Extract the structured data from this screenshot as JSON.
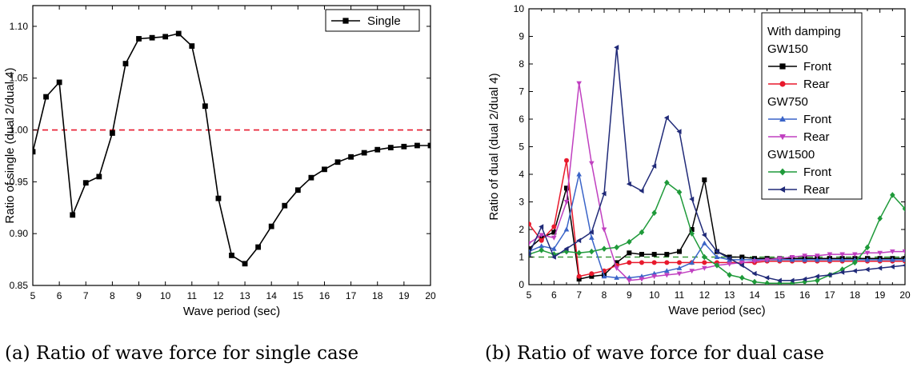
{
  "captions": {
    "a": "(a) Ratio of wave force for single case",
    "b": "(b) Ratio of wave force for dual case"
  },
  "colors": {
    "black": "#000000",
    "red": "#e8192c",
    "blue": "#3a64c8",
    "magenta": "#c040c0",
    "green": "#1f9a3a",
    "navy": "#202a78",
    "ref_red": "#e8192c",
    "ref_green": "#3c9a3c"
  },
  "chart_data": [
    {
      "type": "line",
      "xlabel": "Wave period (sec)",
      "ylabel": "Ratio of single (dual 2/dual 4)",
      "xlim": [
        5,
        20
      ],
      "ylim": [
        0.85,
        1.12
      ],
      "xticks": [
        "5",
        "6",
        "7",
        "8",
        "9",
        "10",
        "11",
        "12",
        "13",
        "14",
        "15",
        "16",
        "17",
        "18",
        "19",
        "20"
      ],
      "yticks": [
        "0.85",
        "0.90",
        "0.95",
        "1.00",
        "1.05",
        "1.10"
      ],
      "reference_line": 1.0,
      "legend_position": "top-right",
      "series": [
        {
          "name": "Single",
          "marker": "square",
          "color": "#000000",
          "x": [
            5,
            5.5,
            6,
            6.5,
            7,
            7.5,
            8,
            8.5,
            9,
            9.5,
            10,
            10.5,
            11,
            11.5,
            12,
            12.5,
            13,
            13.5,
            14,
            14.5,
            15,
            15.5,
            16,
            16.5,
            17,
            17.5,
            18,
            18.5,
            19,
            19.5,
            20
          ],
          "y": [
            0.979,
            1.032,
            1.046,
            0.918,
            0.949,
            0.955,
            0.997,
            1.064,
            1.088,
            1.089,
            1.09,
            1.093,
            1.081,
            1.023,
            0.934,
            0.879,
            0.871,
            0.887,
            0.907,
            0.927,
            0.942,
            0.954,
            0.962,
            0.969,
            0.974,
            0.978,
            0.981,
            0.983,
            0.984,
            0.985,
            0.985
          ]
        }
      ]
    },
    {
      "type": "line",
      "xlabel": "Wave period (sec)",
      "ylabel": "Ratio of dual (dual 2/dual 4)",
      "xlim": [
        5,
        20
      ],
      "ylim": [
        0,
        10
      ],
      "xticks": [
        "5",
        "5.5",
        "6",
        "6.5",
        "7",
        "7.5",
        "8",
        "8.5",
        "9",
        "9.5",
        "10",
        "10.5",
        "11",
        "11.5",
        "12",
        "12.5",
        "13",
        "13.5",
        "14",
        "14.5",
        "15",
        "15.5",
        "16",
        "16.5",
        "17",
        "17.5",
        "18",
        "18.5",
        "19",
        "19.5",
        "20"
      ],
      "xtick_labels": [
        "5",
        "",
        "6",
        "",
        "7",
        "",
        "8",
        "",
        "9",
        "",
        "10",
        "",
        "11",
        "",
        "12",
        "",
        "13",
        "",
        "14",
        "",
        "15",
        "",
        "16",
        "",
        "17",
        "",
        "18",
        "",
        "19",
        "",
        "20"
      ],
      "yticks": [
        "0",
        "1",
        "2",
        "3",
        "4",
        "5",
        "6",
        "7",
        "8",
        "9",
        "10"
      ],
      "reference_line": 1.0,
      "legend_position": "top-right",
      "legend_groups": [
        "With damping GW150",
        "GW750",
        "GW1500"
      ],
      "series": [
        {
          "name": "Front",
          "group": "GW150",
          "marker": "square",
          "color": "#000000",
          "x": [
            5,
            5.5,
            6,
            6.5,
            7,
            7.5,
            8,
            8.5,
            9,
            9.5,
            10,
            10.5,
            11,
            11.5,
            12,
            12.5,
            13,
            13.5,
            14,
            14.5,
            15,
            15.5,
            16,
            16.5,
            17,
            17.5,
            18,
            18.5,
            19,
            19.5,
            20
          ],
          "y": [
            1.3,
            1.7,
            1.9,
            3.5,
            0.2,
            0.3,
            0.35,
            0.8,
            1.15,
            1.1,
            1.1,
            1.1,
            1.2,
            2.0,
            3.8,
            1.2,
            1.0,
            1.0,
            0.95,
            0.95,
            0.95,
            0.95,
            0.95,
            0.95,
            0.95,
            0.95,
            0.95,
            0.95,
            0.95,
            0.95,
            0.95
          ]
        },
        {
          "name": "Rear",
          "group": "GW150",
          "marker": "circle",
          "color": "#e8192c",
          "x": [
            5,
            5.5,
            6,
            6.5,
            7,
            7.5,
            8,
            8.5,
            9,
            9.5,
            10,
            10.5,
            11,
            11.5,
            12,
            12.5,
            13,
            13.5,
            14,
            14.5,
            15,
            15.5,
            16,
            16.5,
            17,
            17.5,
            18,
            18.5,
            19,
            19.5,
            20
          ],
          "y": [
            2.2,
            1.6,
            2.1,
            4.5,
            0.3,
            0.4,
            0.5,
            0.7,
            0.8,
            0.8,
            0.8,
            0.8,
            0.8,
            0.8,
            0.8,
            0.8,
            0.8,
            0.8,
            0.8,
            0.85,
            0.85,
            0.85,
            0.85,
            0.85,
            0.85,
            0.85,
            0.85,
            0.85,
            0.85,
            0.85,
            0.85
          ]
        },
        {
          "name": "Front",
          "group": "GW750",
          "marker": "triangle-up",
          "color": "#3a64c8",
          "x": [
            5,
            5.5,
            6,
            6.5,
            7,
            7.5,
            8,
            8.5,
            9,
            9.5,
            10,
            10.5,
            11,
            11.5,
            12,
            12.5,
            13,
            13.5,
            14,
            14.5,
            15,
            15.5,
            16,
            16.5,
            17,
            17.5,
            18,
            18.5,
            19,
            19.5,
            20
          ],
          "y": [
            1.2,
            1.4,
            1.3,
            2.0,
            4.0,
            1.7,
            0.3,
            0.25,
            0.25,
            0.3,
            0.4,
            0.5,
            0.6,
            0.8,
            1.5,
            1.0,
            0.9,
            0.9,
            0.9,
            0.9,
            0.9,
            0.9,
            0.9,
            0.9,
            0.9,
            0.9,
            0.9,
            0.9,
            0.9,
            0.9,
            0.9
          ]
        },
        {
          "name": "Rear",
          "group": "GW750",
          "marker": "triangle-down",
          "color": "#c040c0",
          "x": [
            5,
            5.5,
            6,
            6.5,
            7,
            7.5,
            8,
            8.5,
            9,
            9.5,
            10,
            10.5,
            11,
            11.5,
            12,
            12.5,
            13,
            13.5,
            14,
            14.5,
            15,
            15.5,
            16,
            16.5,
            17,
            17.5,
            18,
            18.5,
            19,
            19.5,
            20
          ],
          "y": [
            1.5,
            1.8,
            1.7,
            3.0,
            7.3,
            4.4,
            2.0,
            0.6,
            0.15,
            0.2,
            0.3,
            0.35,
            0.4,
            0.5,
            0.6,
            0.7,
            0.75,
            0.8,
            0.85,
            0.9,
            0.95,
            1.0,
            1.05,
            1.05,
            1.1,
            1.1,
            1.1,
            1.15,
            1.15,
            1.2,
            1.2
          ]
        },
        {
          "name": "Front",
          "group": "GW1500",
          "marker": "diamond",
          "color": "#1f9a3a",
          "x": [
            5,
            5.5,
            6,
            6.5,
            7,
            7.5,
            8,
            8.5,
            9,
            9.5,
            10,
            10.5,
            11,
            11.5,
            12,
            12.5,
            13,
            13.5,
            14,
            14.5,
            15,
            15.5,
            16,
            16.5,
            17,
            17.5,
            18,
            18.5,
            19,
            19.5,
            20
          ],
          "y": [
            1.1,
            1.25,
            1.1,
            1.2,
            1.15,
            1.2,
            1.3,
            1.35,
            1.55,
            1.9,
            2.6,
            3.7,
            3.35,
            1.85,
            1.0,
            0.7,
            0.35,
            0.25,
            0.1,
            0.05,
            0.05,
            0.05,
            0.1,
            0.15,
            0.35,
            0.55,
            0.8,
            1.35,
            2.4,
            3.25,
            2.75
          ]
        },
        {
          "name": "Rear",
          "group": "GW1500",
          "marker": "triangle-left",
          "color": "#202a78",
          "x": [
            5,
            5.5,
            6,
            6.5,
            7,
            7.5,
            8,
            8.5,
            9,
            9.5,
            10,
            10.5,
            11,
            11.5,
            12,
            12.5,
            13,
            13.5,
            14,
            14.5,
            15,
            15.5,
            16,
            16.5,
            17,
            17.5,
            18,
            18.5,
            19,
            19.5,
            20
          ],
          "y": [
            1.1,
            2.1,
            1.0,
            1.3,
            1.6,
            1.9,
            3.3,
            8.6,
            3.65,
            3.4,
            4.3,
            6.05,
            5.55,
            3.1,
            1.8,
            1.2,
            0.95,
            0.7,
            0.4,
            0.25,
            0.15,
            0.15,
            0.2,
            0.3,
            0.35,
            0.45,
            0.5,
            0.55,
            0.6,
            0.65,
            0.7
          ]
        }
      ]
    }
  ]
}
